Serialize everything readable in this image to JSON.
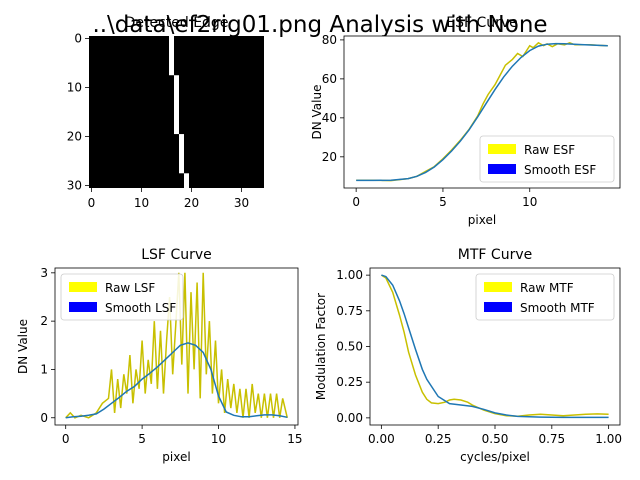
{
  "figure": {
    "suptitle": "..\\data\\ef2rig01.png Analysis with None"
  },
  "chart_data": [
    {
      "type": "heatmap",
      "title": "Detected Edge",
      "xticks": [
        0,
        10,
        20,
        30
      ],
      "yticks": [
        0,
        10,
        20,
        30
      ],
      "xlim": [
        -0.5,
        34.5
      ],
      "ylim": [
        30.5,
        -0.5
      ],
      "colormap": {
        "background": "#000000",
        "edge": "#ffffff"
      },
      "edge_pixels": [
        [
          16,
          0,
          16,
          7
        ],
        [
          17,
          8,
          17,
          19
        ],
        [
          18,
          20,
          18,
          27
        ],
        [
          19,
          28,
          19,
          30
        ]
      ]
    },
    {
      "type": "line",
      "title": "ESF Curve",
      "xlabel": "pixel",
      "ylabel": "DN Value",
      "xlim": [
        -0.7,
        15.2
      ],
      "ylim": [
        4,
        82
      ],
      "xticks": [
        0,
        5,
        10
      ],
      "yticks": [
        20,
        40,
        60,
        80
      ],
      "legend": "lower-right",
      "series": [
        {
          "name": "Raw ESF",
          "color": "#c8c000",
          "x": [
            0,
            1,
            2,
            3,
            3.5,
            4,
            4.5,
            5,
            5.5,
            6,
            6.5,
            7,
            7.3,
            7.6,
            8,
            8.3,
            8.6,
            9,
            9.3,
            9.6,
            10,
            10.2,
            10.5,
            10.8,
            11,
            11.3,
            11.6,
            12,
            12.3,
            12.6,
            13,
            13.5,
            14,
            14.5
          ],
          "y": [
            8,
            8,
            7.8,
            8.8,
            10,
            12.5,
            15,
            19,
            23.5,
            28.5,
            34,
            41,
            47,
            52,
            57,
            62,
            67,
            70,
            73,
            71.5,
            77,
            76,
            78.5,
            77,
            78,
            76.5,
            78,
            77.5,
            78.5,
            77.5,
            77.5,
            77.5,
            77.2,
            77
          ]
        },
        {
          "name": "Smooth ESF",
          "color": "#1f77b4",
          "x": [
            0,
            1,
            2,
            3,
            3.5,
            4,
            4.5,
            5,
            5.5,
            6,
            6.5,
            7,
            7.5,
            8,
            8.5,
            9,
            9.5,
            10,
            10.5,
            11,
            11.5,
            12,
            13,
            14,
            14.5
          ],
          "y": [
            7.9,
            7.9,
            8,
            8.8,
            10,
            12,
            14.8,
            18.5,
            23,
            28,
            33.8,
            40.5,
            47.5,
            54.5,
            61,
            66.5,
            71,
            74.5,
            76.8,
            77.8,
            78.1,
            78,
            77.6,
            77.2,
            77
          ]
        }
      ]
    },
    {
      "type": "line",
      "title": "LSF Curve",
      "xlabel": "pixel",
      "ylabel": "DN Value",
      "xlim": [
        -0.7,
        15.2
      ],
      "ylim": [
        -0.15,
        3.1
      ],
      "xticks": [
        0,
        5,
        10,
        15
      ],
      "yticks": [
        0,
        1,
        2,
        3
      ],
      "legend": "upper-left",
      "series": [
        {
          "name": "Raw LSF",
          "color": "#c8c000",
          "x": [
            0,
            0.3,
            0.6,
            1,
            1.5,
            2,
            2.4,
            2.8,
            3,
            3.2,
            3.4,
            3.6,
            3.8,
            4,
            4.2,
            4.4,
            4.6,
            4.8,
            5,
            5.2,
            5.4,
            5.6,
            5.8,
            6,
            6.2,
            6.4,
            6.6,
            6.8,
            7,
            7.2,
            7.4,
            7.6,
            7.8,
            8,
            8.2,
            8.4,
            8.6,
            8.8,
            9,
            9.2,
            9.4,
            9.6,
            9.8,
            10,
            10.2,
            10.4,
            10.6,
            10.8,
            11,
            11.2,
            11.4,
            11.6,
            11.8,
            12,
            12.2,
            12.4,
            12.6,
            12.8,
            13,
            13.2,
            13.4,
            13.6,
            13.8,
            14,
            14.2,
            14.5
          ],
          "y": [
            0,
            0.1,
            0,
            0.05,
            0,
            0.1,
            0.3,
            0.4,
            1.0,
            0.1,
            0.8,
            0.2,
            0.9,
            0.5,
            1.3,
            0.3,
            1.0,
            0.6,
            1.6,
            0.5,
            1.2,
            0.7,
            2.0,
            0.6,
            1.8,
            0.5,
            1.6,
            2.5,
            0.9,
            1.9,
            3.0,
            1.1,
            3.0,
            0.5,
            2.6,
            1.0,
            2.8,
            0.4,
            3.0,
            0.9,
            2.0,
            0.5,
            1.6,
            0.3,
            1.0,
            0.1,
            0.8,
            0.2,
            0.7,
            0.1,
            0.6,
            0.0,
            0.6,
            0.0,
            0.7,
            0.1,
            0.5,
            0.0,
            0.5,
            0.0,
            0.5,
            0.0,
            0.5,
            0.0,
            0.4,
            0.0
          ]
        },
        {
          "name": "Smooth LSF",
          "color": "#1f77b4",
          "x": [
            0,
            0.5,
            1,
            1.5,
            2,
            2.5,
            3,
            3.5,
            4,
            4.5,
            5,
            5.5,
            6,
            6.5,
            7,
            7.5,
            8,
            8.5,
            9,
            9.5,
            10,
            10.5,
            11,
            11.5,
            12,
            12.5,
            13,
            13.5,
            14,
            14.5
          ],
          "y": [
            0,
            0.02,
            0.03,
            0.05,
            0.08,
            0.18,
            0.3,
            0.42,
            0.55,
            0.65,
            0.8,
            0.92,
            1.05,
            1.2,
            1.35,
            1.5,
            1.55,
            1.5,
            1.35,
            1.0,
            0.45,
            0.12,
            0.05,
            0.02,
            0.02,
            0.04,
            0.06,
            0.06,
            0.04,
            0.01
          ]
        }
      ]
    },
    {
      "type": "line",
      "title": "MTF Curve",
      "xlabel": "cycles/pixel",
      "ylabel": "Modulation Factor",
      "xlim": [
        -0.05,
        1.05
      ],
      "ylim": [
        -0.05,
        1.05
      ],
      "xticks": [
        0,
        0.25,
        0.5,
        0.75,
        1
      ],
      "xtick_labels": [
        "0.00",
        "0.25",
        "0.50",
        "0.75",
        "1.00"
      ],
      "yticks": [
        0,
        0.25,
        0.5,
        0.75,
        1
      ],
      "ytick_labels": [
        "0.00",
        "0.25",
        "0.50",
        "0.75",
        "1.00"
      ],
      "legend": "upper-right",
      "series": [
        {
          "name": "Raw MTF",
          "color": "#c8c000",
          "x": [
            0,
            0.02,
            0.05,
            0.08,
            0.1,
            0.12,
            0.15,
            0.18,
            0.2,
            0.22,
            0.25,
            0.28,
            0.3,
            0.32,
            0.35,
            0.38,
            0.4,
            0.45,
            0.5,
            0.55,
            0.6,
            0.65,
            0.7,
            0.75,
            0.8,
            0.85,
            0.9,
            0.95,
            1.0
          ],
          "y": [
            1.0,
            0.98,
            0.88,
            0.72,
            0.6,
            0.46,
            0.3,
            0.18,
            0.13,
            0.105,
            0.1,
            0.11,
            0.125,
            0.13,
            0.125,
            0.11,
            0.09,
            0.055,
            0.03,
            0.015,
            0.012,
            0.02,
            0.025,
            0.02,
            0.015,
            0.02,
            0.025,
            0.028,
            0.025
          ]
        },
        {
          "name": "Smooth MTF",
          "color": "#1f77b4",
          "x": [
            0,
            0.02,
            0.05,
            0.08,
            0.1,
            0.12,
            0.15,
            0.18,
            0.2,
            0.25,
            0.3,
            0.35,
            0.4,
            0.45,
            0.5,
            0.55,
            0.6,
            0.7,
            0.8,
            0.9,
            1.0
          ],
          "y": [
            1.0,
            0.99,
            0.93,
            0.82,
            0.73,
            0.63,
            0.48,
            0.34,
            0.27,
            0.15,
            0.1,
            0.09,
            0.08,
            0.06,
            0.035,
            0.02,
            0.01,
            0.005,
            0.003,
            0.003,
            0.003
          ]
        }
      ]
    }
  ]
}
